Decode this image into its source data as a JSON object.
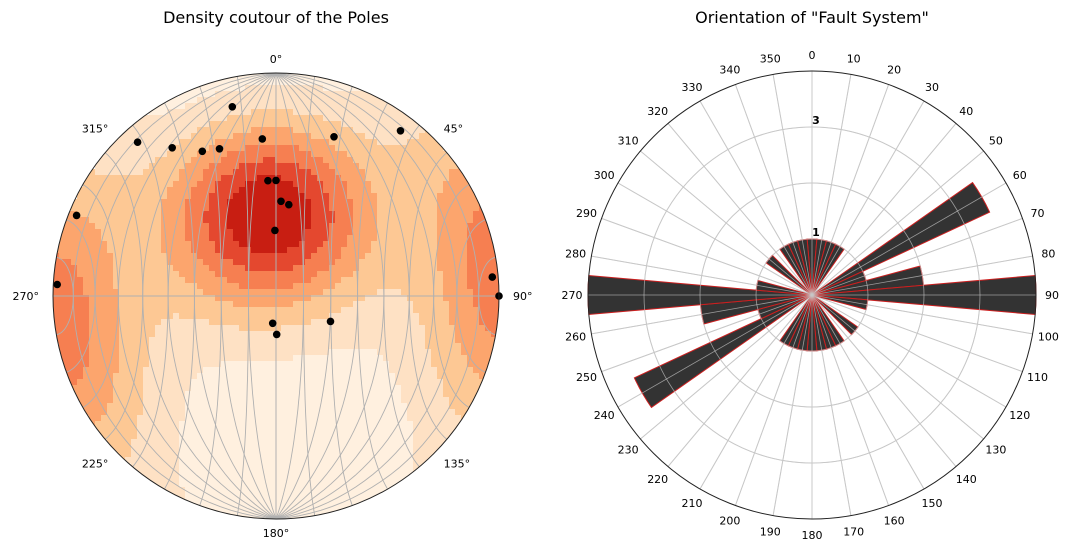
{
  "chart_data": [
    {
      "type": "stereonet-contour",
      "title": "Density coutour of the Poles",
      "azimuth_labels": [
        {
          "az": 0,
          "label": "0°"
        },
        {
          "az": 45,
          "label": "45°"
        },
        {
          "az": 90,
          "label": "90°"
        },
        {
          "az": 135,
          "label": "135°"
        },
        {
          "az": 180,
          "label": "180°"
        },
        {
          "az": 225,
          "label": "225°"
        },
        {
          "az": 270,
          "label": "270°"
        },
        {
          "az": 315,
          "label": "315°"
        }
      ],
      "grid": true,
      "colormap": [
        "#fff0df",
        "#fee1c4",
        "#fdc894",
        "#fca56d",
        "#f67f51",
        "#e4482f",
        "#c81e12"
      ],
      "density_centers": [
        {
          "trend": 355,
          "plunge": 60,
          "weight": 1.0
        },
        {
          "trend": 250,
          "plunge": 5,
          "weight": 0.35
        },
        {
          "trend": 95,
          "plunge": 2,
          "weight": 0.4
        }
      ],
      "poles": [
        {
          "trend": 318,
          "plunge": 8
        },
        {
          "trend": 325,
          "plunge": 20
        },
        {
          "trend": 333,
          "plunge": 28
        },
        {
          "trend": 339,
          "plunge": 30
        },
        {
          "trend": 347,
          "plunge": 14
        },
        {
          "trend": 355,
          "plunge": 30
        },
        {
          "trend": 20,
          "plunge": 25
        },
        {
          "trend": 37,
          "plunge": 8
        },
        {
          "trend": 292,
          "plunge": 4
        },
        {
          "trend": 0,
          "plunge": 47
        },
        {
          "trend": 356,
          "plunge": 47
        },
        {
          "trend": 3,
          "plunge": 55
        },
        {
          "trend": 8,
          "plunge": 56
        },
        {
          "trend": 359,
          "plunge": 66
        },
        {
          "trend": 187,
          "plunge": 80
        },
        {
          "trend": 179,
          "plunge": 76
        },
        {
          "trend": 115,
          "plunge": 68
        },
        {
          "trend": 273,
          "plunge": 2
        },
        {
          "trend": 85,
          "plunge": 3
        },
        {
          "trend": 90,
          "plunge": 0
        }
      ]
    },
    {
      "type": "rose",
      "title": "Orientation of \"Fault System\"",
      "angle_ticks": [
        0,
        10,
        20,
        30,
        40,
        50,
        60,
        70,
        80,
        90,
        100,
        110,
        120,
        130,
        140,
        150,
        160,
        170,
        180,
        190,
        200,
        210,
        220,
        230,
        240,
        250,
        260,
        270,
        280,
        290,
        300,
        310,
        320,
        330,
        340,
        350
      ],
      "radial_ticks": [
        {
          "value": 1,
          "label": "1"
        },
        {
          "value": 3,
          "label": "3"
        }
      ],
      "rlim": [
        0,
        4
      ],
      "bin_width_deg": 10,
      "bins": [
        {
          "start": -5,
          "count": 1
        },
        {
          "start": 5,
          "count": 1
        },
        {
          "start": 15,
          "count": 1
        },
        {
          "start": 25,
          "count": 1
        },
        {
          "start": 55,
          "count": 3.5
        },
        {
          "start": 65,
          "count": 1
        },
        {
          "start": 75,
          "count": 2
        },
        {
          "start": 85,
          "count": 4
        },
        {
          "start": 95,
          "count": 1
        },
        {
          "start": 125,
          "count": 1
        },
        {
          "start": 145,
          "count": 1
        },
        {
          "start": 155,
          "count": 1
        },
        {
          "start": 165,
          "count": 1
        },
        {
          "start": 175,
          "count": 1
        },
        {
          "start": 185,
          "count": 1
        },
        {
          "start": 195,
          "count": 1
        },
        {
          "start": 205,
          "count": 1
        },
        {
          "start": 235,
          "count": 3.5
        },
        {
          "start": 245,
          "count": 1
        },
        {
          "start": 255,
          "count": 2
        },
        {
          "start": 265,
          "count": 4
        },
        {
          "start": 275,
          "count": 1
        },
        {
          "start": 305,
          "count": 1
        },
        {
          "start": 325,
          "count": 1
        },
        {
          "start": 335,
          "count": 1
        },
        {
          "start": 345,
          "count": 1
        }
      ],
      "bar_color": "#333333",
      "edge_color": "#cc1f1f"
    }
  ]
}
